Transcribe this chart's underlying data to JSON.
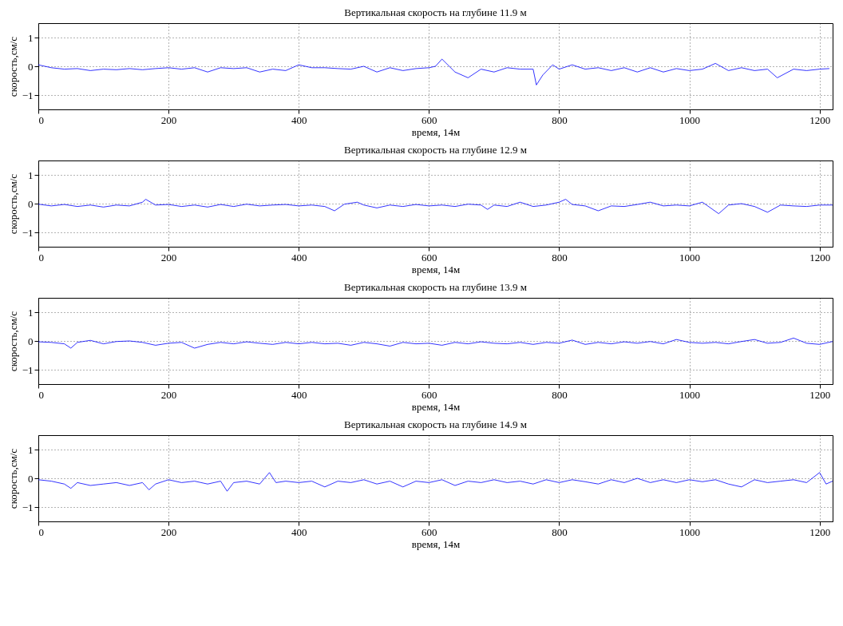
{
  "chart_data": [
    {
      "type": "line",
      "title": "Вертикальная скорость на глубине 11.9 м",
      "xlabel": "время, 14м",
      "ylabel": "скорость,см/с",
      "xlim": [
        0,
        1220
      ],
      "ylim": [
        -1.5,
        1.5
      ],
      "xticks": [
        0,
        200,
        400,
        600,
        800,
        1000,
        1200
      ],
      "yticks": [
        -1,
        0,
        1
      ],
      "grid": true,
      "series": [
        {
          "color": "#0000ff",
          "x": [
            0,
            20,
            40,
            60,
            80,
            100,
            120,
            140,
            160,
            180,
            200,
            220,
            240,
            260,
            280,
            300,
            320,
            340,
            360,
            380,
            400,
            420,
            440,
            460,
            480,
            500,
            520,
            540,
            560,
            580,
            600,
            610,
            620,
            640,
            660,
            680,
            700,
            720,
            740,
            760,
            765,
            775,
            790,
            800,
            820,
            840,
            860,
            880,
            900,
            920,
            940,
            960,
            980,
            1000,
            1020,
            1040,
            1060,
            1080,
            1100,
            1120,
            1135,
            1160,
            1180,
            1200,
            1215
          ],
          "values": [
            0.05,
            -0.05,
            -0.1,
            -0.08,
            -0.15,
            -0.1,
            -0.12,
            -0.08,
            -0.12,
            -0.08,
            -0.05,
            -0.1,
            -0.05,
            -0.2,
            -0.05,
            -0.08,
            -0.05,
            -0.2,
            -0.1,
            -0.15,
            0.05,
            -0.05,
            -0.05,
            -0.08,
            -0.1,
            0.0,
            -0.2,
            -0.05,
            -0.15,
            -0.08,
            -0.05,
            0.0,
            0.25,
            -0.2,
            -0.4,
            -0.1,
            -0.2,
            -0.05,
            -0.1,
            -0.1,
            -0.65,
            -0.3,
            0.05,
            -0.1,
            0.05,
            -0.1,
            -0.05,
            -0.15,
            -0.05,
            -0.2,
            -0.05,
            -0.2,
            -0.08,
            -0.15,
            -0.1,
            0.1,
            -0.15,
            -0.05,
            -0.15,
            -0.1,
            -0.4,
            -0.1,
            -0.15,
            -0.1,
            -0.08
          ]
        }
      ]
    },
    {
      "type": "line",
      "title": "Вертикальная скорость на глубине 12.9 м",
      "xlabel": "время, 14м",
      "ylabel": "скорость,см/с",
      "xlim": [
        0,
        1220
      ],
      "ylim": [
        -1.5,
        1.5
      ],
      "xticks": [
        0,
        200,
        400,
        600,
        800,
        1000,
        1200
      ],
      "yticks": [
        -1,
        0,
        1
      ],
      "grid": true,
      "series": [
        {
          "color": "#0000ff",
          "x": [
            0,
            20,
            40,
            60,
            80,
            100,
            120,
            140,
            160,
            165,
            180,
            200,
            220,
            240,
            260,
            280,
            300,
            320,
            340,
            360,
            380,
            400,
            420,
            440,
            455,
            470,
            490,
            500,
            520,
            540,
            560,
            580,
            600,
            620,
            640,
            660,
            680,
            690,
            700,
            720,
            740,
            760,
            780,
            800,
            810,
            820,
            840,
            860,
            880,
            900,
            920,
            940,
            960,
            980,
            1000,
            1020,
            1045,
            1060,
            1080,
            1100,
            1120,
            1140,
            1160,
            1180,
            1200,
            1220
          ],
          "values": [
            -0.02,
            -0.08,
            -0.03,
            -0.1,
            -0.05,
            -0.12,
            -0.05,
            -0.08,
            0.05,
            0.15,
            -0.05,
            -0.03,
            -0.1,
            -0.05,
            -0.12,
            -0.03,
            -0.1,
            -0.02,
            -0.08,
            -0.05,
            -0.03,
            -0.08,
            -0.05,
            -0.1,
            -0.25,
            -0.02,
            0.05,
            -0.05,
            -0.15,
            -0.05,
            -0.1,
            -0.03,
            -0.08,
            -0.05,
            -0.1,
            -0.02,
            -0.05,
            -0.2,
            -0.05,
            -0.1,
            0.05,
            -0.1,
            -0.05,
            0.05,
            0.15,
            -0.03,
            -0.08,
            -0.25,
            -0.08,
            -0.1,
            -0.03,
            0.05,
            -0.08,
            -0.05,
            -0.08,
            0.05,
            -0.35,
            -0.05,
            0.0,
            -0.1,
            -0.3,
            -0.05,
            -0.08,
            -0.1,
            -0.05,
            -0.05
          ]
        }
      ]
    },
    {
      "type": "line",
      "title": "Вертикальная скорость на глубине 13.9 м",
      "xlabel": "время, 14м",
      "ylabel": "скорость,см/с",
      "xlim": [
        0,
        1220
      ],
      "ylim": [
        -1.5,
        1.5
      ],
      "xticks": [
        0,
        200,
        400,
        600,
        800,
        1000,
        1200
      ],
      "yticks": [
        -1,
        0,
        1
      ],
      "grid": true,
      "series": [
        {
          "color": "#0000ff",
          "x": [
            0,
            20,
            40,
            50,
            60,
            80,
            100,
            120,
            140,
            160,
            180,
            200,
            220,
            240,
            260,
            280,
            300,
            320,
            340,
            360,
            380,
            400,
            420,
            440,
            460,
            480,
            500,
            520,
            540,
            560,
            580,
            600,
            620,
            640,
            660,
            680,
            700,
            720,
            740,
            760,
            780,
            800,
            820,
            840,
            860,
            880,
            900,
            920,
            940,
            960,
            980,
            1000,
            1020,
            1040,
            1060,
            1080,
            1100,
            1120,
            1140,
            1160,
            1180,
            1200,
            1220
          ],
          "values": [
            -0.03,
            -0.05,
            -0.1,
            -0.25,
            -0.05,
            0.02,
            -0.1,
            -0.02,
            0.0,
            -0.05,
            -0.15,
            -0.08,
            -0.05,
            -0.25,
            -0.12,
            -0.05,
            -0.1,
            -0.03,
            -0.08,
            -0.12,
            -0.05,
            -0.1,
            -0.05,
            -0.1,
            -0.08,
            -0.15,
            -0.05,
            -0.1,
            -0.18,
            -0.05,
            -0.1,
            -0.08,
            -0.15,
            -0.05,
            -0.1,
            -0.03,
            -0.08,
            -0.1,
            -0.05,
            -0.12,
            -0.05,
            -0.08,
            0.03,
            -0.12,
            -0.05,
            -0.1,
            -0.03,
            -0.08,
            -0.02,
            -0.1,
            0.05,
            -0.05,
            -0.08,
            -0.05,
            -0.1,
            -0.02,
            0.05,
            -0.08,
            -0.05,
            0.1,
            -0.08,
            -0.12,
            -0.02
          ]
        }
      ]
    },
    {
      "type": "line",
      "title": "Вертикальная скорость на глубине 14.9 м",
      "xlabel": "время, 14м",
      "ylabel": "скорость,см/с",
      "xlim": [
        0,
        1220
      ],
      "ylim": [
        -1.5,
        1.5
      ],
      "xticks": [
        0,
        200,
        400,
        600,
        800,
        1000,
        1200
      ],
      "yticks": [
        -1,
        0,
        1
      ],
      "grid": true,
      "series": [
        {
          "color": "#0000ff",
          "x": [
            0,
            20,
            40,
            50,
            60,
            80,
            100,
            120,
            140,
            160,
            170,
            180,
            200,
            220,
            240,
            260,
            280,
            290,
            300,
            320,
            340,
            355,
            365,
            380,
            400,
            420,
            440,
            460,
            480,
            500,
            520,
            540,
            560,
            580,
            600,
            620,
            640,
            660,
            680,
            700,
            720,
            740,
            760,
            780,
            800,
            820,
            840,
            860,
            880,
            900,
            920,
            940,
            960,
            980,
            1000,
            1020,
            1040,
            1060,
            1080,
            1100,
            1120,
            1140,
            1160,
            1180,
            1200,
            1210,
            1220
          ],
          "values": [
            -0.05,
            -0.1,
            -0.2,
            -0.35,
            -0.15,
            -0.25,
            -0.2,
            -0.15,
            -0.25,
            -0.15,
            -0.4,
            -0.2,
            -0.05,
            -0.15,
            -0.1,
            -0.2,
            -0.1,
            -0.45,
            -0.15,
            -0.1,
            -0.2,
            0.2,
            -0.15,
            -0.1,
            -0.15,
            -0.1,
            -0.3,
            -0.1,
            -0.15,
            -0.05,
            -0.2,
            -0.1,
            -0.3,
            -0.1,
            -0.15,
            -0.05,
            -0.25,
            -0.1,
            -0.15,
            -0.05,
            -0.15,
            -0.1,
            -0.2,
            -0.05,
            -0.15,
            -0.05,
            -0.12,
            -0.2,
            -0.05,
            -0.15,
            0.0,
            -0.15,
            -0.05,
            -0.15,
            -0.05,
            -0.12,
            -0.05,
            -0.2,
            -0.3,
            -0.05,
            -0.15,
            -0.1,
            -0.05,
            -0.15,
            0.2,
            -0.2,
            -0.1
          ]
        }
      ]
    }
  ]
}
